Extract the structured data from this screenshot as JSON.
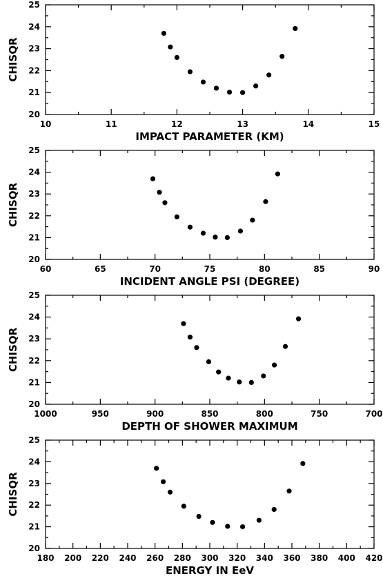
{
  "chart_data": [
    {
      "type": "scatter",
      "xlabel": "IMPACT PARAMETER (KM)",
      "ylabel": "CHISQR",
      "xlim": [
        10,
        15
      ],
      "ylim": [
        20,
        25
      ],
      "x_reversed": false,
      "xticks": [
        10,
        11,
        12,
        13,
        14,
        15
      ],
      "yticks": [
        20,
        21,
        22,
        23,
        24,
        25
      ],
      "grid": false,
      "x": [
        11.8,
        11.9,
        12.0,
        12.2,
        12.4,
        12.6,
        12.8,
        13.0,
        13.2,
        13.4,
        13.6,
        13.8
      ],
      "y": [
        23.7,
        23.08,
        22.6,
        21.95,
        21.48,
        21.2,
        21.02,
        21.0,
        21.3,
        21.8,
        22.65,
        23.92
      ]
    },
    {
      "type": "scatter",
      "xlabel": "INCIDENT ANGLE PSI (DEGREE)",
      "ylabel": "CHISQR",
      "xlim": [
        60,
        90
      ],
      "ylim": [
        20,
        25
      ],
      "x_reversed": false,
      "xticks": [
        60,
        65,
        70,
        75,
        80,
        85,
        90
      ],
      "yticks": [
        20,
        21,
        22,
        23,
        24,
        25
      ],
      "grid": false,
      "x": [
        69.8,
        70.4,
        70.9,
        72.0,
        73.2,
        74.4,
        75.5,
        76.6,
        77.8,
        78.9,
        80.1,
        81.2
      ],
      "y": [
        23.7,
        23.08,
        22.6,
        21.95,
        21.48,
        21.2,
        21.02,
        21.0,
        21.3,
        21.8,
        22.65,
        23.92
      ]
    },
    {
      "type": "scatter",
      "xlabel": "DEPTH OF SHOWER MAXIMUM",
      "ylabel": "CHISQR",
      "xlim": [
        1000,
        700
      ],
      "ylim": [
        20,
        25
      ],
      "x_reversed": true,
      "xticks": [
        1000,
        950,
        900,
        850,
        800,
        750,
        700
      ],
      "yticks": [
        20,
        21,
        22,
        23,
        24,
        25
      ],
      "grid": false,
      "x": [
        874,
        868,
        862,
        851,
        842,
        833,
        823,
        812,
        801,
        791,
        781,
        769
      ],
      "y": [
        23.7,
        23.08,
        22.6,
        21.95,
        21.48,
        21.2,
        21.02,
        21.0,
        21.3,
        21.8,
        22.65,
        23.92
      ]
    },
    {
      "type": "scatter",
      "xlabel": "ENERGY IN EeV",
      "ylabel": "CHISQR",
      "xlim": [
        180,
        420
      ],
      "ylim": [
        20,
        25
      ],
      "x_reversed": false,
      "xticks": [
        180,
        200,
        220,
        240,
        260,
        280,
        300,
        320,
        340,
        360,
        380,
        400,
        420
      ],
      "yticks": [
        20,
        21,
        22,
        23,
        24,
        25
      ],
      "grid": false,
      "x": [
        261,
        266,
        271,
        281,
        292,
        302,
        313,
        324,
        336,
        347,
        358,
        368
      ],
      "y": [
        23.7,
        23.08,
        22.6,
        21.95,
        21.48,
        21.2,
        21.02,
        21.0,
        21.3,
        21.8,
        22.65,
        23.92
      ]
    }
  ]
}
